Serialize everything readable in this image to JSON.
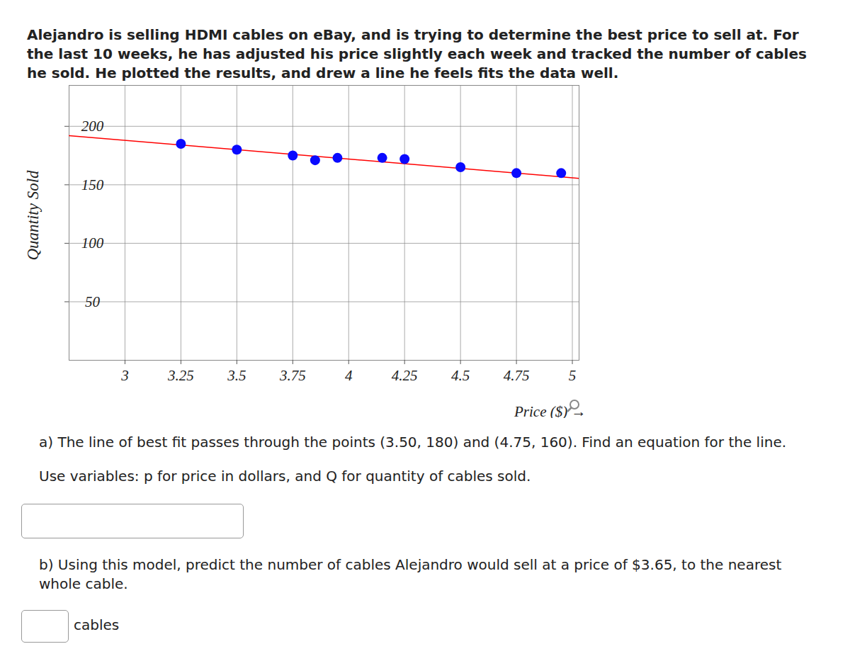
{
  "intro": "Alejandro is selling HDMI cables on eBay, and is trying to determine the best price to sell at.  For the last 10 weeks, he has adjusted his price slightly each week and tracked the number of cables he sold.  He plotted the results, and drew a line he feels fits the data well.",
  "chart_data": {
    "type": "scatter",
    "x_label": "Price ($)",
    "y_label": "Quantity Sold",
    "x": [
      3.25,
      3.5,
      3.75,
      3.85,
      3.95,
      4.15,
      4.25,
      4.5,
      4.75,
      4.95
    ],
    "values": [
      185,
      180,
      175,
      171,
      173,
      173,
      172,
      165,
      160,
      160
    ],
    "color": "#0a0aff",
    "marker": "circle",
    "fit_line": {
      "type": "line",
      "x": [
        2.75,
        5.03
      ],
      "values": [
        192,
        155.5
      ],
      "color": "#ff0000"
    },
    "xlim": [
      2.75,
      5.03
    ],
    "xticks": [
      3,
      3.25,
      3.5,
      3.75,
      4,
      4.25,
      4.5,
      4.75,
      5
    ],
    "ylim": [
      0,
      235
    ],
    "yticks": [
      50,
      100,
      150,
      200
    ],
    "grid": true
  },
  "questions": [
    {
      "text": "a) The line of best fit passes through the points (3.50, 180) and (4.75, 160).  Find an equation for the line.",
      "instruction": "Use variables: p for price in dollars, and Q for quantity of cables sold."
    },
    {
      "text": "b) Using this model, predict the number of cables Alejandro would sell at a price of $3.65, to the nearest whole cable.",
      "unit": "cables"
    }
  ]
}
